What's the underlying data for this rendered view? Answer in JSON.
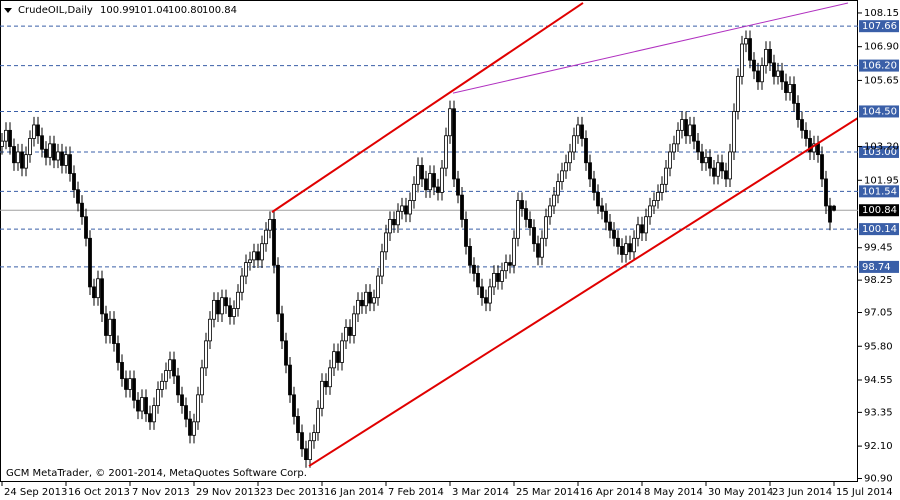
{
  "chart_data": {
    "type": "candlestick",
    "title": "CrudeOIL,Daily",
    "header_values": [
      "100.99",
      "101.04",
      "100.80",
      "100.84"
    ],
    "footer": "GCM MetaTrader, © 2001-2014, MetaQuotes Software Corp.",
    "xlim": [
      -0.5,
      214
    ],
    "ylim": [
      90.77,
      108.63
    ],
    "xticks": [
      {
        "value": 0,
        "label": "24 Sep 2013"
      },
      {
        "value": 16,
        "label": "16 Oct 2013"
      },
      {
        "value": 32,
        "label": "7 Nov 2013"
      },
      {
        "value": 48,
        "label": "29 Nov 2013"
      },
      {
        "value": 64,
        "label": "23 Dec 2013"
      },
      {
        "value": 80,
        "label": "16 Jan 2014"
      },
      {
        "value": 96,
        "label": "7 Feb 2014"
      },
      {
        "value": 112,
        "label": "3 Mar 2014"
      },
      {
        "value": 128,
        "label": "25 Mar 2014"
      },
      {
        "value": 144,
        "label": "16 Apr 2014"
      },
      {
        "value": 160,
        "label": "8 May 2014"
      },
      {
        "value": 176,
        "label": "30 May 2014"
      },
      {
        "value": 192,
        "label": "23 Jun 2014"
      },
      {
        "value": 208,
        "label": "15 Jul 2014"
      }
    ],
    "yticks": [
      108.15,
      {
        "value": 106.9,
        "label": "106.90"
      },
      105.65,
      {
        "value": 103.2,
        "label": "103.20"
      },
      101.95,
      99.45,
      98.25,
      97.05,
      {
        "value": 95.8,
        "label": "95.80"
      },
      94.55,
      93.35,
      {
        "value": 92.1,
        "label": "92.10"
      },
      {
        "value": 90.9,
        "label": "90.90"
      }
    ],
    "levels": [
      {
        "value": 107.66,
        "color": "#3a5fa8"
      },
      {
        "value": 106.2,
        "label": "106.20",
        "color": "#3a5fa8"
      },
      {
        "value": 104.5,
        "label": "104.50",
        "color": "#3a5fa8"
      },
      {
        "value": 103,
        "label": "103.00",
        "color": "#3a5fa8"
      },
      {
        "value": 101.54,
        "color": "#3a5fa8"
      },
      {
        "value": 100.84,
        "color": "#000000"
      },
      {
        "value": 100.14,
        "color": "#3a5fa8"
      },
      {
        "value": 98.74,
        "color": "#3a5fa8"
      }
    ],
    "trendlines": [
      {
        "color": "#e00000",
        "from": [
          67.5,
          100.77
        ],
        "to": [
          145.25,
          108.52
        ]
      },
      {
        "color": "#e00000",
        "from": [
          76.75,
          91.36
        ],
        "to": [
          214,
          104.26
        ]
      },
      {
        "color": "#b030c0",
        "from": [
          112.75,
          105.18
        ],
        "to": [
          211.5,
          108.52
        ]
      }
    ],
    "candles": [
      [
        103.2,
        103.7,
        102.9,
        103.4
      ],
      [
        103.4,
        104.1,
        103.1,
        103.8
      ],
      [
        103.8,
        104.1,
        102.9,
        103.2
      ],
      [
        103.2,
        103.5,
        102.3,
        102.6
      ],
      [
        102.6,
        103.3,
        102.3,
        103.0
      ],
      [
        103.0,
        103.3,
        102.1,
        102.4
      ],
      [
        102.4,
        103.2,
        102.1,
        102.9
      ],
      [
        102.9,
        103.8,
        102.6,
        103.5
      ],
      [
        103.5,
        104.3,
        103.2,
        104.0
      ],
      [
        104.0,
        104.3,
        103.3,
        103.6
      ],
      [
        103.6,
        103.9,
        102.8,
        103.1
      ],
      [
        103.1,
        103.4,
        102.5,
        102.8
      ],
      [
        102.8,
        103.6,
        102.5,
        103.3
      ],
      [
        103.3,
        103.6,
        102.4,
        102.7
      ],
      [
        102.7,
        103.3,
        102.4,
        103.0
      ],
      [
        103.0,
        103.3,
        102.2,
        102.5
      ],
      [
        102.5,
        103.2,
        102.2,
        102.9
      ],
      [
        102.9,
        103.2,
        101.9,
        102.2
      ],
      [
        102.2,
        102.5,
        101.3,
        101.6
      ],
      [
        101.6,
        101.9,
        100.8,
        101.1
      ],
      [
        101.1,
        101.4,
        100.3,
        100.6
      ],
      [
        100.6,
        100.9,
        99.5,
        99.8
      ],
      [
        99.8,
        100.1,
        97.7,
        98.0
      ],
      [
        98.0,
        98.3,
        97.3,
        97.6
      ],
      [
        97.6,
        98.6,
        97.3,
        98.3
      ],
      [
        98.3,
        98.6,
        96.7,
        97.0
      ],
      [
        97.0,
        97.3,
        95.9,
        96.2
      ],
      [
        96.2,
        97.1,
        95.9,
        96.8
      ],
      [
        96.8,
        97.1,
        95.6,
        95.9
      ],
      [
        95.9,
        96.2,
        94.9,
        95.2
      ],
      [
        95.2,
        95.5,
        94.3,
        94.6
      ],
      [
        94.6,
        94.9,
        93.9,
        94.2
      ],
      [
        94.2,
        94.9,
        93.9,
        94.6
      ],
      [
        94.6,
        94.9,
        93.5,
        93.8
      ],
      [
        93.8,
        94.1,
        93.1,
        93.4
      ],
      [
        93.4,
        94.2,
        93.1,
        93.9
      ],
      [
        93.9,
        94.2,
        93.0,
        93.3
      ],
      [
        93.3,
        93.6,
        92.7,
        93.0
      ],
      [
        93.0,
        93.9,
        92.7,
        93.6
      ],
      [
        93.6,
        94.5,
        93.3,
        94.2
      ],
      [
        94.2,
        94.8,
        93.9,
        94.5
      ],
      [
        94.5,
        95.2,
        94.2,
        94.9
      ],
      [
        94.9,
        95.6,
        94.6,
        95.3
      ],
      [
        95.3,
        95.6,
        94.4,
        94.7
      ],
      [
        94.7,
        95.0,
        93.7,
        94.0
      ],
      [
        94.0,
        94.3,
        93.3,
        93.6
      ],
      [
        93.6,
        93.9,
        92.8,
        93.1
      ],
      [
        93.1,
        93.4,
        92.2,
        92.5
      ],
      [
        92.5,
        93.3,
        92.2,
        93.0
      ],
      [
        93.0,
        94.3,
        92.7,
        94.0
      ],
      [
        94.0,
        95.3,
        93.7,
        95.0
      ],
      [
        95.0,
        96.3,
        94.7,
        96.0
      ],
      [
        96.0,
        97.1,
        95.7,
        96.8
      ],
      [
        96.8,
        97.8,
        96.5,
        97.5
      ],
      [
        97.5,
        97.8,
        96.7,
        97.0
      ],
      [
        97.0,
        97.9,
        96.7,
        97.6
      ],
      [
        97.6,
        97.9,
        97.0,
        97.3
      ],
      [
        97.3,
        97.6,
        96.6,
        96.9
      ],
      [
        96.9,
        97.5,
        96.6,
        97.2
      ],
      [
        97.2,
        98.1,
        96.9,
        97.8
      ],
      [
        97.8,
        98.7,
        97.5,
        98.4
      ],
      [
        98.4,
        99.2,
        98.1,
        98.9
      ],
      [
        98.9,
        99.3,
        98.6,
        99.0
      ],
      [
        99.0,
        99.6,
        98.7,
        99.3
      ],
      [
        99.3,
        99.6,
        98.7,
        99.0
      ],
      [
        99.0,
        99.9,
        98.7,
        99.6
      ],
      [
        99.6,
        100.4,
        99.3,
        100.1
      ],
      [
        100.1,
        100.8,
        99.8,
        100.5
      ],
      [
        100.5,
        100.8,
        98.5,
        98.8
      ],
      [
        98.8,
        99.1,
        96.7,
        97.0
      ],
      [
        97.0,
        97.3,
        95.7,
        96.0
      ],
      [
        96.0,
        96.3,
        94.8,
        95.1
      ],
      [
        95.1,
        95.4,
        93.7,
        94.0
      ],
      [
        94.0,
        94.3,
        92.9,
        93.2
      ],
      [
        93.2,
        93.5,
        92.3,
        92.6
      ],
      [
        92.6,
        92.9,
        91.7,
        92.0
      ],
      [
        92.0,
        92.3,
        91.3,
        91.6
      ],
      [
        91.6,
        92.6,
        91.3,
        92.3
      ],
      [
        92.3,
        92.9,
        92.0,
        92.6
      ],
      [
        92.6,
        93.8,
        92.3,
        93.5
      ],
      [
        93.5,
        94.8,
        93.2,
        94.5
      ],
      [
        94.5,
        94.8,
        94.0,
        94.3
      ],
      [
        94.3,
        95.3,
        94.0,
        95.0
      ],
      [
        95.0,
        95.9,
        94.7,
        95.6
      ],
      [
        95.6,
        95.9,
        94.9,
        95.2
      ],
      [
        95.2,
        96.3,
        94.9,
        96.0
      ],
      [
        96.0,
        96.8,
        95.7,
        96.5
      ],
      [
        96.5,
        96.8,
        95.9,
        96.2
      ],
      [
        96.2,
        97.3,
        95.9,
        97.0
      ],
      [
        97.0,
        97.8,
        96.7,
        97.5
      ],
      [
        97.5,
        97.8,
        97.0,
        97.3
      ],
      [
        97.3,
        98.1,
        97.0,
        97.8
      ],
      [
        97.8,
        98.1,
        97.1,
        97.4
      ],
      [
        97.4,
        97.9,
        97.1,
        97.6
      ],
      [
        97.6,
        98.7,
        97.3,
        98.4
      ],
      [
        98.4,
        99.6,
        98.1,
        99.3
      ],
      [
        99.3,
        100.3,
        99.0,
        100.0
      ],
      [
        100.0,
        100.8,
        99.7,
        100.5
      ],
      [
        100.5,
        100.8,
        100.0,
        100.3
      ],
      [
        100.3,
        101.1,
        100.0,
        100.8
      ],
      [
        100.8,
        101.3,
        100.5,
        101.0
      ],
      [
        101.0,
        101.3,
        100.4,
        100.7
      ],
      [
        100.7,
        101.5,
        100.4,
        101.2
      ],
      [
        101.2,
        102.1,
        100.9,
        101.8
      ],
      [
        101.8,
        102.8,
        101.5,
        102.5
      ],
      [
        102.5,
        102.8,
        101.7,
        102.0
      ],
      [
        102.0,
        102.3,
        101.3,
        101.6
      ],
      [
        101.6,
        102.5,
        101.3,
        102.2
      ],
      [
        102.2,
        102.5,
        101.4,
        101.7
      ],
      [
        101.7,
        102.0,
        101.2,
        101.5
      ],
      [
        101.5,
        102.7,
        101.2,
        102.4
      ],
      [
        102.4,
        103.9,
        102.1,
        103.6
      ],
      [
        103.6,
        104.9,
        103.3,
        104.6
      ],
      [
        104.6,
        104.9,
        101.7,
        102.0
      ],
      [
        102.0,
        102.3,
        101.1,
        101.4
      ],
      [
        101.4,
        101.7,
        100.2,
        100.5
      ],
      [
        100.5,
        100.8,
        99.2,
        99.5
      ],
      [
        99.5,
        99.8,
        98.5,
        98.8
      ],
      [
        98.8,
        99.1,
        98.2,
        98.5
      ],
      [
        98.5,
        98.8,
        97.7,
        98.0
      ],
      [
        98.0,
        98.3,
        97.3,
        97.6
      ],
      [
        97.6,
        97.9,
        97.1,
        97.4
      ],
      [
        97.4,
        98.3,
        97.1,
        98.0
      ],
      [
        98.0,
        98.8,
        97.7,
        98.5
      ],
      [
        98.5,
        98.8,
        97.9,
        98.2
      ],
      [
        98.2,
        98.9,
        97.9,
        98.6
      ],
      [
        98.6,
        99.2,
        98.3,
        98.9
      ],
      [
        98.9,
        99.2,
        98.5,
        98.8
      ],
      [
        98.8,
        100.1,
        98.5,
        99.8
      ],
      [
        99.8,
        101.5,
        99.5,
        101.2
      ],
      [
        101.2,
        101.5,
        100.6,
        100.9
      ],
      [
        100.9,
        101.2,
        100.2,
        100.5
      ],
      [
        100.5,
        100.8,
        99.9,
        100.2
      ],
      [
        100.2,
        100.5,
        99.3,
        99.6
      ],
      [
        99.6,
        99.9,
        98.8,
        99.1
      ],
      [
        99.1,
        100.1,
        98.8,
        99.8
      ],
      [
        99.8,
        100.9,
        99.5,
        100.6
      ],
      [
        100.6,
        101.3,
        100.3,
        101.0
      ],
      [
        101.0,
        101.7,
        100.7,
        101.4
      ],
      [
        101.4,
        102.2,
        101.1,
        101.9
      ],
      [
        101.9,
        102.6,
        101.6,
        102.3
      ],
      [
        102.3,
        102.9,
        102.0,
        102.6
      ],
      [
        102.6,
        103.3,
        102.3,
        103.0
      ],
      [
        103.0,
        103.9,
        102.7,
        103.6
      ],
      [
        103.6,
        104.3,
        103.3,
        104.0
      ],
      [
        104.0,
        104.3,
        103.2,
        103.5
      ],
      [
        103.5,
        103.8,
        102.3,
        102.6
      ],
      [
        102.6,
        102.9,
        101.7,
        102.0
      ],
      [
        102.0,
        102.3,
        101.2,
        101.5
      ],
      [
        101.5,
        101.8,
        100.7,
        101.0
      ],
      [
        101.0,
        101.3,
        100.5,
        100.8
      ],
      [
        100.8,
        101.1,
        100.1,
        100.4
      ],
      [
        100.4,
        100.7,
        99.8,
        100.1
      ],
      [
        100.1,
        100.4,
        99.5,
        99.8
      ],
      [
        99.8,
        100.1,
        99.2,
        99.5
      ],
      [
        99.5,
        99.8,
        98.9,
        99.2
      ],
      [
        99.2,
        99.9,
        98.9,
        99.6
      ],
      [
        99.6,
        99.9,
        99.0,
        99.3
      ],
      [
        99.3,
        100.1,
        99.0,
        99.8
      ],
      [
        99.8,
        100.6,
        99.5,
        100.3
      ],
      [
        100.3,
        100.6,
        99.7,
        100.0
      ],
      [
        100.0,
        100.9,
        99.7,
        100.6
      ],
      [
        100.6,
        101.3,
        100.3,
        101.0
      ],
      [
        101.0,
        101.5,
        100.7,
        101.2
      ],
      [
        101.2,
        101.8,
        100.9,
        101.5
      ],
      [
        101.5,
        102.1,
        101.2,
        101.8
      ],
      [
        101.8,
        102.7,
        101.5,
        102.4
      ],
      [
        102.4,
        103.3,
        102.1,
        103.0
      ],
      [
        103.0,
        103.6,
        102.7,
        103.3
      ],
      [
        103.3,
        104.1,
        103.0,
        103.8
      ],
      [
        103.8,
        104.5,
        103.5,
        104.2
      ],
      [
        104.2,
        104.5,
        103.3,
        103.6
      ],
      [
        103.6,
        104.3,
        103.3,
        104.0
      ],
      [
        104.0,
        104.3,
        103.1,
        103.4
      ],
      [
        103.4,
        103.7,
        102.7,
        103.0
      ],
      [
        103.0,
        103.3,
        102.3,
        102.6
      ],
      [
        102.6,
        103.1,
        102.3,
        102.8
      ],
      [
        102.8,
        103.1,
        102.1,
        102.4
      ],
      [
        102.4,
        102.7,
        101.8,
        102.1
      ],
      [
        102.1,
        102.9,
        101.8,
        102.6
      ],
      [
        102.6,
        102.9,
        102.0,
        102.3
      ],
      [
        102.3,
        102.6,
        101.7,
        102.0
      ],
      [
        102.0,
        103.3,
        101.7,
        103.0
      ],
      [
        103.0,
        104.8,
        102.7,
        104.5
      ],
      [
        104.5,
        106.1,
        104.2,
        105.8
      ],
      [
        105.8,
        107.3,
        105.5,
        107.0
      ],
      [
        107.0,
        107.5,
        106.7,
        107.2
      ],
      [
        107.2,
        107.5,
        106.1,
        106.4
      ],
      [
        106.4,
        106.7,
        105.7,
        106.0
      ],
      [
        106.0,
        106.3,
        105.3,
        105.6
      ],
      [
        105.6,
        106.5,
        105.3,
        106.2
      ],
      [
        106.2,
        107.1,
        105.9,
        106.8
      ],
      [
        106.8,
        107.1,
        106.0,
        106.3
      ],
      [
        106.3,
        106.6,
        105.5,
        105.8
      ],
      [
        105.8,
        106.3,
        105.5,
        106.0
      ],
      [
        106.0,
        106.3,
        105.3,
        105.6
      ],
      [
        105.6,
        105.9,
        104.9,
        105.2
      ],
      [
        105.2,
        105.8,
        104.9,
        105.5
      ],
      [
        105.5,
        105.8,
        104.5,
        104.8
      ],
      [
        104.8,
        105.1,
        103.9,
        104.2
      ],
      [
        104.2,
        104.5,
        103.5,
        103.8
      ],
      [
        103.8,
        104.1,
        103.2,
        103.5
      ],
      [
        103.5,
        103.8,
        102.7,
        103.0
      ],
      [
        103.0,
        103.6,
        102.7,
        103.3
      ],
      [
        103.3,
        103.6,
        102.6,
        102.9
      ],
      [
        102.9,
        103.2,
        101.7,
        102.0
      ],
      [
        102.0,
        102.3,
        100.7,
        101.0
      ],
      [
        101.0,
        101.3,
        100.1,
        100.4
      ],
      [
        100.99,
        101.04,
        100.8,
        100.84
      ]
    ]
  }
}
